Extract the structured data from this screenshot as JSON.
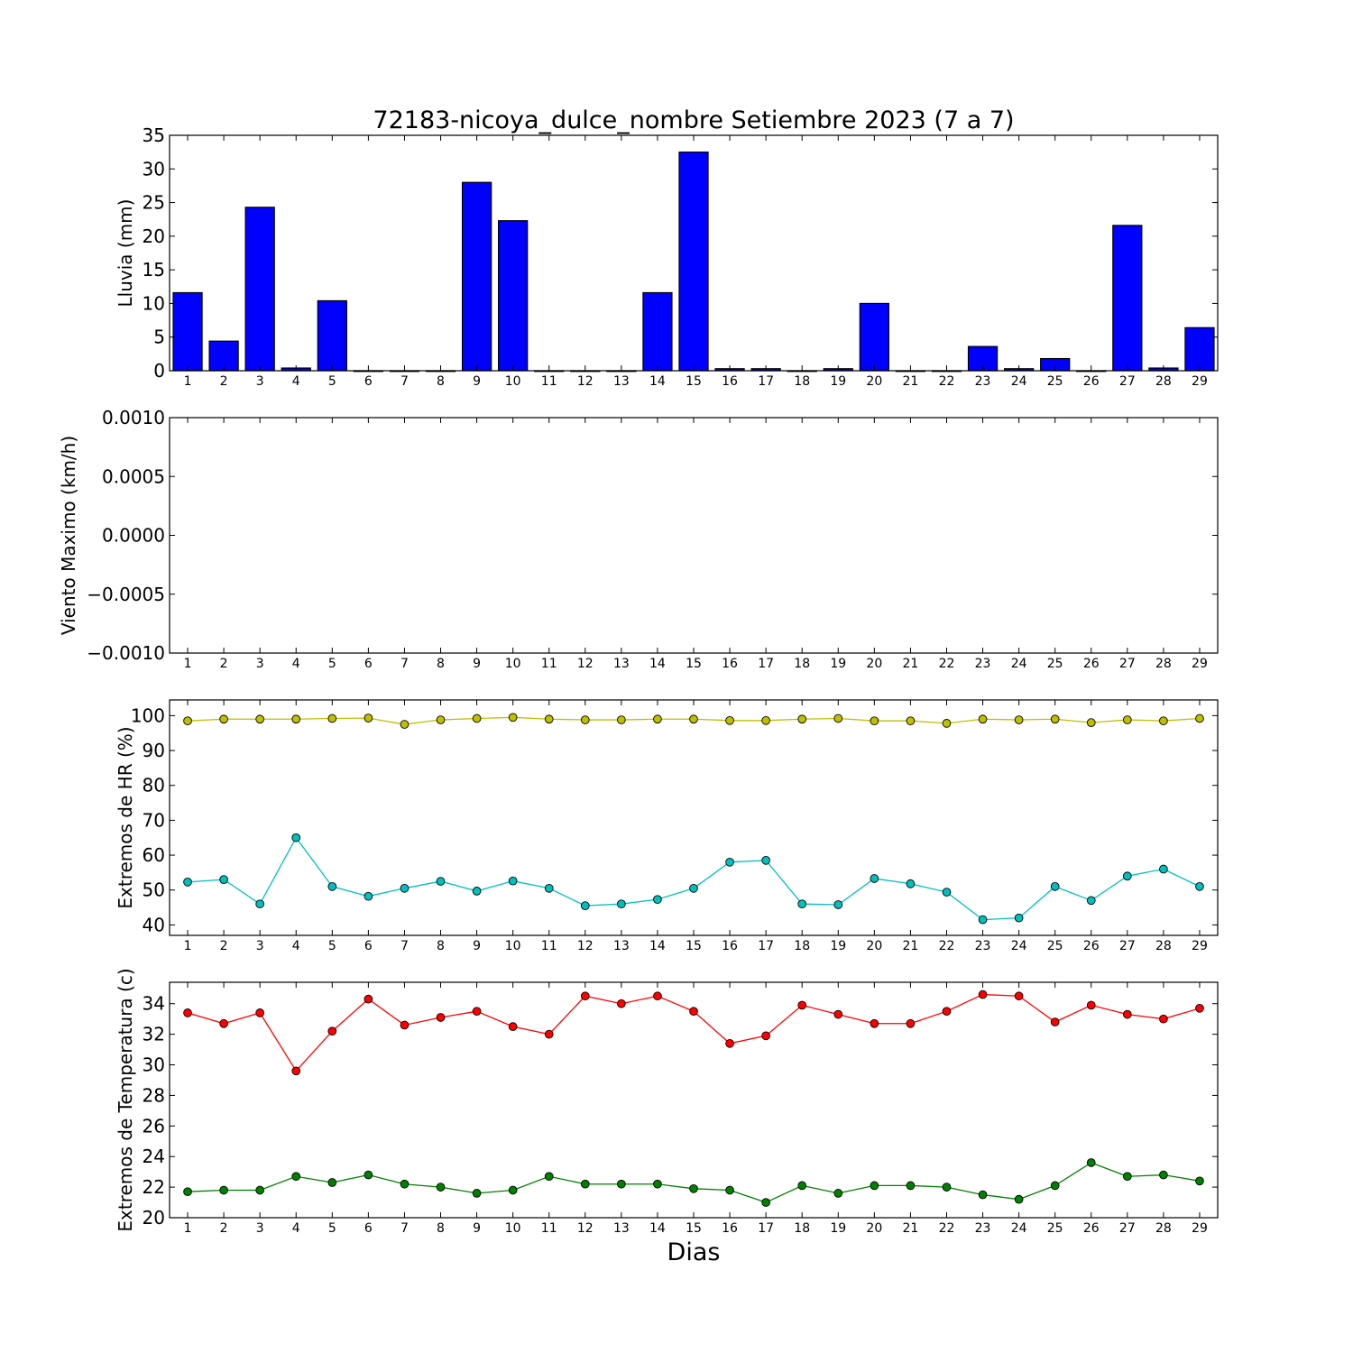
{
  "title": "72183-nicoya_dulce_nombre Setiembre 2023  (7 a 7)",
  "xlabel": "Dias",
  "chart_data": [
    {
      "type": "bar",
      "ylabel": "Lluvia (mm)",
      "ylim": [
        0,
        35
      ],
      "yticks": [
        0,
        5,
        10,
        15,
        20,
        25,
        30,
        35
      ],
      "ytick_labels": [
        "0",
        "5",
        "10",
        "15",
        "20",
        "25",
        "30",
        "35"
      ],
      "x": [
        1,
        2,
        3,
        4,
        5,
        6,
        7,
        8,
        9,
        10,
        11,
        12,
        13,
        14,
        15,
        16,
        17,
        18,
        19,
        20,
        21,
        22,
        23,
        24,
        25,
        26,
        27,
        28,
        29
      ],
      "series": [
        {
          "values": [
            11.6,
            4.4,
            24.3,
            0.4,
            10.4,
            0,
            0,
            0,
            28.0,
            22.3,
            0,
            0,
            0,
            11.6,
            32.5,
            0.3,
            0.3,
            0,
            0.3,
            10.0,
            0,
            0,
            3.6,
            0.3,
            1.8,
            0,
            21.6,
            0.4,
            6.4
          ],
          "color": "#0000ff"
        }
      ]
    },
    {
      "type": "line",
      "ylabel": "Viento Maximo (km/h)",
      "ylim": [
        -0.001,
        0.001
      ],
      "yticks": [
        -0.001,
        -0.0005,
        0,
        0.0005,
        0.001
      ],
      "ytick_labels": [
        "−0.0010",
        "−0.0005",
        "0.0000",
        "0.0005",
        "0.0010"
      ],
      "x": [
        1,
        2,
        3,
        4,
        5,
        6,
        7,
        8,
        9,
        10,
        11,
        12,
        13,
        14,
        15,
        16,
        17,
        18,
        19,
        20,
        21,
        22,
        23,
        24,
        25,
        26,
        27,
        28,
        29
      ],
      "series": []
    },
    {
      "type": "line",
      "ylabel": "Extremos de HR (%)",
      "ylim": [
        37,
        104.5
      ],
      "yticks": [
        40,
        50,
        60,
        70,
        80,
        90,
        100
      ],
      "ytick_labels": [
        "40",
        "50",
        "60",
        "70",
        "80",
        "90",
        "100"
      ],
      "x": [
        1,
        2,
        3,
        4,
        5,
        6,
        7,
        8,
        9,
        10,
        11,
        12,
        13,
        14,
        15,
        16,
        17,
        18,
        19,
        20,
        21,
        22,
        23,
        24,
        25,
        26,
        27,
        28,
        29
      ],
      "series": [
        {
          "values": [
            98.5,
            99.0,
            99.0,
            99.0,
            99.2,
            99.3,
            97.5,
            98.8,
            99.2,
            99.5,
            99.0,
            98.8,
            98.8,
            99.0,
            99.0,
            98.6,
            98.6,
            99.0,
            99.2,
            98.5,
            98.5,
            97.8,
            99.0,
            98.8,
            99.0,
            98.0,
            98.8,
            98.5,
            99.2
          ],
          "color": "#bfbf00"
        },
        {
          "values": [
            52.3,
            53.0,
            46.0,
            65.0,
            51.0,
            48.2,
            50.5,
            52.5,
            49.7,
            52.6,
            50.5,
            45.5,
            46.0,
            47.3,
            50.5,
            58.0,
            58.5,
            46.0,
            45.8,
            53.3,
            51.8,
            49.4,
            41.5,
            42.0,
            51.0,
            47.0,
            54.0,
            56.0,
            51.0
          ],
          "color": "#00bfbf"
        }
      ]
    },
    {
      "type": "line",
      "ylabel": "Extremos de Temperatura (c)",
      "ylim": [
        20,
        35.4
      ],
      "yticks": [
        20,
        22,
        24,
        26,
        28,
        30,
        32,
        34
      ],
      "ytick_labels": [
        "20",
        "22",
        "24",
        "26",
        "28",
        "30",
        "32",
        "34"
      ],
      "x": [
        1,
        2,
        3,
        4,
        5,
        6,
        7,
        8,
        9,
        10,
        11,
        12,
        13,
        14,
        15,
        16,
        17,
        18,
        19,
        20,
        21,
        22,
        23,
        24,
        25,
        26,
        27,
        28,
        29
      ],
      "series": [
        {
          "values": [
            33.4,
            32.7,
            33.4,
            29.6,
            32.2,
            34.3,
            32.6,
            33.1,
            33.5,
            32.5,
            32.0,
            34.5,
            34.0,
            34.5,
            33.5,
            31.4,
            31.9,
            33.9,
            33.3,
            32.7,
            32.7,
            33.5,
            34.6,
            34.5,
            32.8,
            33.9,
            33.3,
            33.0,
            33.7
          ],
          "color": "#ff0000"
        },
        {
          "values": [
            21.7,
            21.8,
            21.8,
            22.7,
            22.3,
            22.8,
            22.2,
            22.0,
            21.6,
            21.8,
            22.7,
            22.2,
            22.2,
            22.2,
            21.9,
            21.8,
            21.0,
            22.1,
            21.6,
            22.1,
            22.1,
            22.0,
            21.5,
            21.2,
            22.1,
            23.6,
            22.7,
            22.8,
            22.4
          ],
          "color": "#008000"
        }
      ]
    }
  ]
}
